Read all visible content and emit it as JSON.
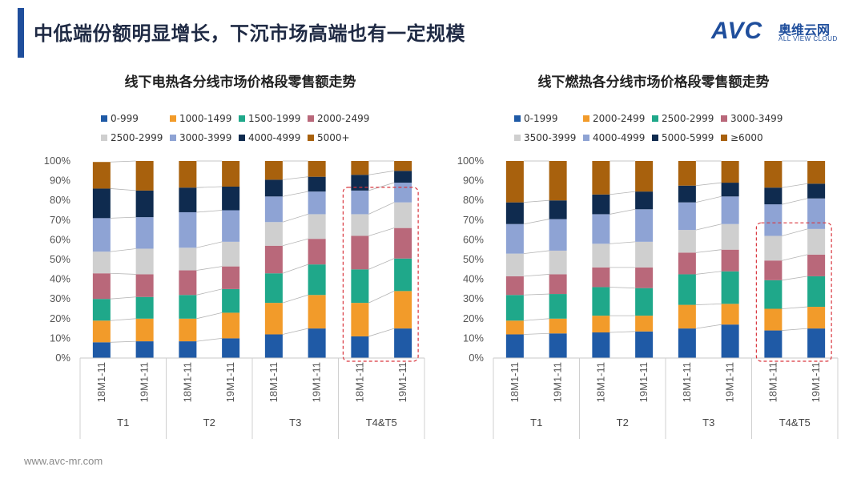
{
  "page": {
    "title": "中低端份额明显增长，下沉市场高端也有一定规模",
    "footer": "www.avc-mr.com"
  },
  "logo": {
    "mark": "AVC",
    "cn": "奥维云网",
    "en": "ALL VIEW CLOUD"
  },
  "chart_data": [
    {
      "type": "bar",
      "stacked": true,
      "title": "线下电热各分线市场价格段零售额走势",
      "categories": [
        "18M1-11",
        "19M1-11",
        "18M1-11",
        "19M1-11",
        "18M1-11",
        "19M1-11",
        "18M1-11",
        "19M1-11"
      ],
      "groups": [
        "T1",
        "T2",
        "T3",
        "T4&T5"
      ],
      "yticks": [
        "0%",
        "10%",
        "20%",
        "30%",
        "40%",
        "50%",
        "60%",
        "70%",
        "80%",
        "90%",
        "100%"
      ],
      "ylim": [
        0,
        100
      ],
      "highlight_group": "T4&T5",
      "series": [
        {
          "name": "0-999",
          "color": "#1f5aa6",
          "values": [
            8,
            8.5,
            8.5,
            10,
            12,
            15,
            11,
            15
          ]
        },
        {
          "name": "1000-1499",
          "color": "#f29b2a",
          "values": [
            11,
            11.5,
            11.5,
            13,
            16,
            17,
            17,
            19
          ]
        },
        {
          "name": "1500-1999",
          "color": "#1fa88a",
          "values": [
            11,
            11,
            12,
            12,
            15,
            15.5,
            17,
            16.5
          ]
        },
        {
          "name": "2000-2499",
          "color": "#b9687a",
          "values": [
            13,
            11.5,
            12.5,
            11.5,
            14,
            13,
            17,
            15.5
          ]
        },
        {
          "name": "2500-2999",
          "color": "#cfcfcf",
          "values": [
            11,
            13,
            11.5,
            12.5,
            12,
            12.5,
            11,
            13
          ]
        },
        {
          "name": "3000-3999",
          "color": "#8ea3d4",
          "values": [
            17,
            16,
            18,
            16,
            13,
            11.5,
            12,
            10
          ]
        },
        {
          "name": "4000-4999",
          "color": "#0f2b4f",
          "values": [
            15,
            13.5,
            12.5,
            12,
            8.5,
            7.5,
            8,
            6
          ]
        },
        {
          "name": "5000+",
          "color": "#a8610d",
          "values": [
            13.5,
            15,
            13.5,
            13,
            9.5,
            8,
            7,
            5
          ]
        }
      ]
    },
    {
      "type": "bar",
      "stacked": true,
      "title": "线下燃热各分线市场价格段零售额走势",
      "categories": [
        "18M1-11",
        "19M1-11",
        "18M1-11",
        "19M1-11",
        "18M1-11",
        "19M1-11",
        "18M1-11",
        "19M1-11"
      ],
      "groups": [
        "T1",
        "T2",
        "T3",
        "T4&T5"
      ],
      "yticks": [
        "0%",
        "10%",
        "20%",
        "30%",
        "40%",
        "50%",
        "60%",
        "70%",
        "80%",
        "90%",
        "100%"
      ],
      "ylim": [
        0,
        100
      ],
      "highlight_group": "T4&T5",
      "series": [
        {
          "name": "0-1999",
          "color": "#1f5aa6",
          "values": [
            12,
            12.5,
            13,
            13.5,
            15,
            17,
            14,
            15
          ]
        },
        {
          "name": "2000-2499",
          "color": "#f29b2a",
          "values": [
            7,
            7.5,
            8.5,
            8,
            12,
            10.5,
            11,
            11
          ]
        },
        {
          "name": "2500-2999",
          "color": "#1fa88a",
          "values": [
            13,
            12.5,
            14.5,
            14,
            15.5,
            16.5,
            14.5,
            15.5
          ]
        },
        {
          "name": "3000-3499",
          "color": "#b9687a",
          "values": [
            9.5,
            10,
            10,
            10.5,
            11,
            11,
            10,
            11
          ]
        },
        {
          "name": "3500-3999",
          "color": "#cfcfcf",
          "values": [
            11.5,
            12,
            12,
            13,
            11.5,
            13,
            12.5,
            13
          ]
        },
        {
          "name": "4000-4999",
          "color": "#8ea3d4",
          "values": [
            15,
            16,
            15,
            16.5,
            14,
            14,
            16,
            15.5
          ]
        },
        {
          "name": "5000-5999",
          "color": "#0f2b4f",
          "values": [
            11,
            9.5,
            10,
            9,
            8.5,
            7,
            8.5,
            7.5
          ]
        },
        {
          "name": "≥6000",
          "color": "#a8610d",
          "values": [
            21,
            20,
            17,
            15.5,
            12.5,
            11,
            13.5,
            11.5
          ]
        }
      ]
    }
  ]
}
